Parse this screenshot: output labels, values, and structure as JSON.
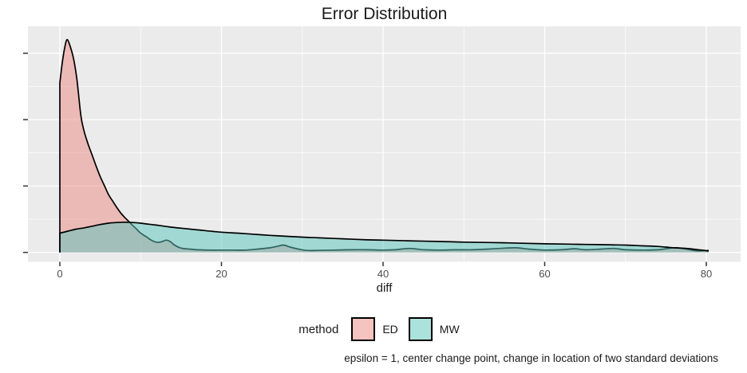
{
  "figure": {
    "title": "Error Distribution",
    "x_axis_label": "diff",
    "caption": "epsilon = 1, center change point, change in location of two standard deviations"
  },
  "legend": {
    "title": "method",
    "entries": [
      {
        "label": "ED",
        "color": "rgba(235,135,129,0.5)"
      },
      {
        "label": "MW",
        "color": "rgba(89,197,189,0.5)"
      }
    ]
  },
  "colors": {
    "panel_bg": "#EBEBEB",
    "grid": "#FFFFFF",
    "outline": "#000000",
    "tick_mark": "#333333",
    "tick_label": "#4D4D4D",
    "ed_fill": "rgba(235,135,129,0.5)",
    "mw_fill": "rgba(89,197,189,0.5)"
  },
  "chart_data": {
    "type": "area",
    "title": "Error Distribution",
    "xlabel": "diff",
    "ylabel": "",
    "xlim": [
      -3.95,
      84.2
    ],
    "ylim": [
      0,
      0.068
    ],
    "xticks": [
      0,
      20,
      40,
      60,
      80
    ],
    "xtick_labels": [
      "0",
      "20",
      "40",
      "60",
      "80"
    ],
    "xminor": [
      10,
      30,
      50,
      70
    ],
    "yticks": [
      0,
      0.02,
      0.04,
      0.06
    ],
    "ytick_labels": [],
    "grid": true,
    "legend_position": "bottom",
    "series": [
      {
        "name": "ED",
        "x": [
          0,
          0.3,
          0.6,
          0.9,
          1.3,
          1.7,
          2.1,
          2.6,
          3,
          3.5,
          4,
          4.5,
          5,
          5.5,
          6,
          6.5,
          7,
          7.5,
          8,
          8.5,
          8.9,
          9.5,
          10,
          10.7,
          11.3,
          11.9,
          12.4,
          12.8,
          13.2,
          13.7,
          14.2,
          15,
          16,
          17,
          18.5,
          20,
          21.5,
          23,
          24.5,
          26,
          27,
          27.7,
          28.5,
          29.5,
          30.5,
          32,
          34,
          36,
          38,
          40,
          41.5,
          43.3,
          45,
          47,
          49,
          51,
          53,
          55,
          56.5,
          58,
          60,
          62,
          63.7,
          65,
          67,
          68.6,
          70,
          72,
          74,
          76,
          77.5,
          78.7,
          79.5,
          80.3
        ],
        "y": [
          0.0511,
          0.0571,
          0.0617,
          0.0641,
          0.0619,
          0.0583,
          0.0523,
          0.0413,
          0.0365,
          0.0326,
          0.0293,
          0.0259,
          0.0228,
          0.0202,
          0.0175,
          0.0156,
          0.0137,
          0.012,
          0.0106,
          0.0094,
          0.0084,
          0.007,
          0.0058,
          0.0047,
          0.0037,
          0.0031,
          0.0031,
          0.0034,
          0.0037,
          0.0032,
          0.0022,
          0.0013,
          0.001,
          0.0008,
          0.0007,
          0.0007,
          0.0007,
          0.0007,
          0.001,
          0.0014,
          0.0019,
          0.0022,
          0.0016,
          0.001,
          0.0006,
          0.0006,
          0.0007,
          0.0008,
          0.0008,
          0.0007,
          0.0008,
          0.0012,
          0.0008,
          0.0007,
          0.0008,
          0.0008,
          0.001,
          0.0013,
          0.0014,
          0.001,
          0.0007,
          0.0008,
          0.0011,
          0.0008,
          0.001,
          0.0012,
          0.0008,
          0.0007,
          0.0008,
          0.0014,
          0.001,
          0.0005,
          0.0005,
          0.0006
        ]
      },
      {
        "name": "MW",
        "x": [
          0,
          1,
          2,
          3,
          4,
          5,
          6,
          7,
          8,
          9,
          10,
          11,
          12,
          13.5,
          15,
          17,
          20,
          22,
          25,
          27,
          30,
          32,
          35,
          38,
          40,
          43,
          47,
          50,
          55,
          60,
          63,
          65,
          68,
          70,
          72,
          74,
          75,
          76,
          77,
          78,
          79,
          79.8,
          80.3
        ],
        "y": [
          0.0058,
          0.0064,
          0.007,
          0.0074,
          0.0079,
          0.0084,
          0.0088,
          0.009,
          0.0091,
          0.009,
          0.0088,
          0.0085,
          0.0082,
          0.0077,
          0.0073,
          0.0068,
          0.0061,
          0.0058,
          0.0053,
          0.005,
          0.0046,
          0.0044,
          0.0041,
          0.0038,
          0.0037,
          0.0035,
          0.0033,
          0.0031,
          0.0029,
          0.0026,
          0.0025,
          0.0024,
          0.0023,
          0.0022,
          0.002,
          0.0018,
          0.0016,
          0.0014,
          0.0013,
          0.0011,
          0.0008,
          0.0006,
          0.0004
        ]
      }
    ]
  }
}
